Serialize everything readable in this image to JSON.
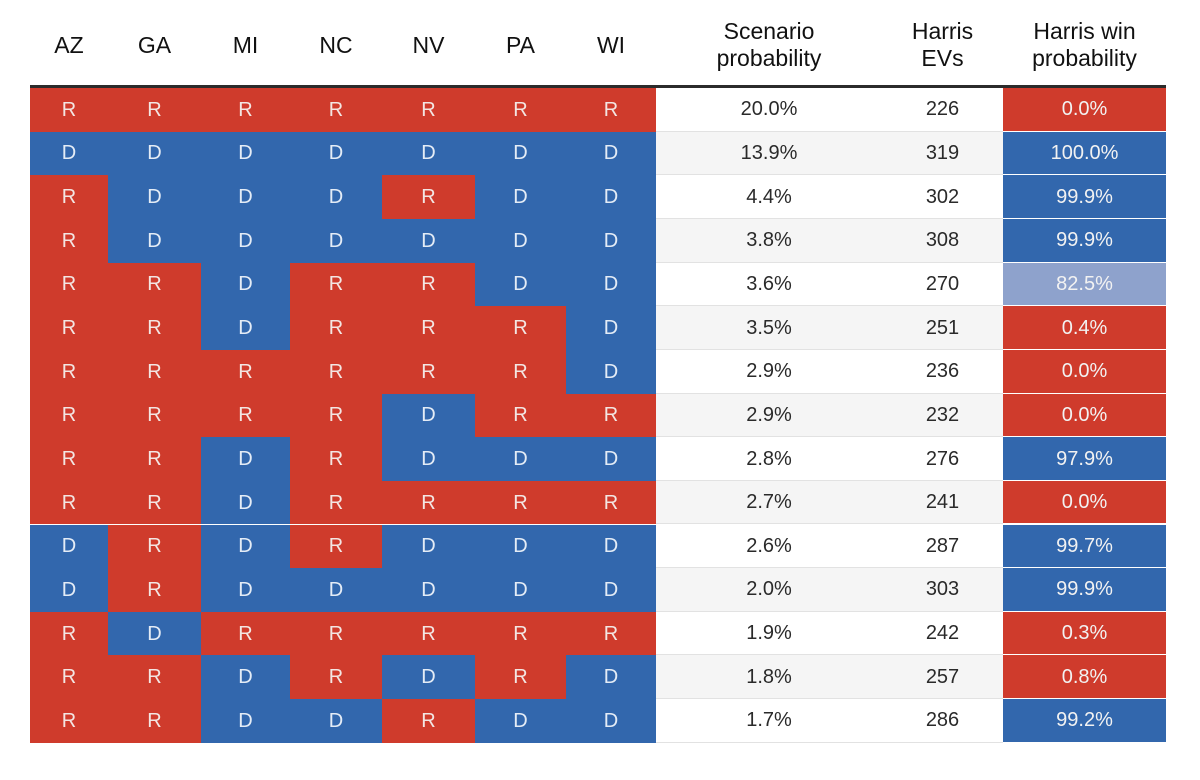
{
  "headers": {
    "states": [
      "AZ",
      "GA",
      "MI",
      "NC",
      "NV",
      "PA",
      "WI"
    ],
    "scenario_probability": "Scenario\nprobability",
    "harris_evs": "Harris\nEVs",
    "harris_win_probability": "Harris win\nprobability"
  },
  "colors": {
    "republican": "#cf3b2c",
    "democrat": "#3267ad",
    "tossup_lean_democrat": "#8ea2cc",
    "row_white": "#ffffff",
    "row_grey": "#f5f5f5",
    "header_rule": "#2b2b2b"
  },
  "chart_data": {
    "type": "table",
    "columns": [
      "AZ",
      "GA",
      "MI",
      "NC",
      "NV",
      "PA",
      "WI",
      "Scenario probability",
      "Harris EVs",
      "Harris win probability"
    ],
    "rows": [
      {
        "states": [
          "R",
          "R",
          "R",
          "R",
          "R",
          "R",
          "R"
        ],
        "scenario_probability": "20.0%",
        "harris_evs": "226",
        "harris_win_probability": "0.0%"
      },
      {
        "states": [
          "D",
          "D",
          "D",
          "D",
          "D",
          "D",
          "D"
        ],
        "scenario_probability": "13.9%",
        "harris_evs": "319",
        "harris_win_probability": "100.0%"
      },
      {
        "states": [
          "R",
          "D",
          "D",
          "D",
          "R",
          "D",
          "D"
        ],
        "scenario_probability": "4.4%",
        "harris_evs": "302",
        "harris_win_probability": "99.9%"
      },
      {
        "states": [
          "R",
          "D",
          "D",
          "D",
          "D",
          "D",
          "D"
        ],
        "scenario_probability": "3.8%",
        "harris_evs": "308",
        "harris_win_probability": "99.9%"
      },
      {
        "states": [
          "R",
          "R",
          "D",
          "R",
          "R",
          "D",
          "D"
        ],
        "scenario_probability": "3.6%",
        "harris_evs": "270",
        "harris_win_probability": "82.5%"
      },
      {
        "states": [
          "R",
          "R",
          "D",
          "R",
          "R",
          "R",
          "D"
        ],
        "scenario_probability": "3.5%",
        "harris_evs": "251",
        "harris_win_probability": "0.4%"
      },
      {
        "states": [
          "R",
          "R",
          "R",
          "R",
          "R",
          "R",
          "D"
        ],
        "scenario_probability": "2.9%",
        "harris_evs": "236",
        "harris_win_probability": "0.0%"
      },
      {
        "states": [
          "R",
          "R",
          "R",
          "R",
          "D",
          "R",
          "R"
        ],
        "scenario_probability": "2.9%",
        "harris_evs": "232",
        "harris_win_probability": "0.0%"
      },
      {
        "states": [
          "R",
          "R",
          "D",
          "R",
          "D",
          "D",
          "D"
        ],
        "scenario_probability": "2.8%",
        "harris_evs": "276",
        "harris_win_probability": "97.9%"
      },
      {
        "states": [
          "R",
          "R",
          "D",
          "R",
          "R",
          "R",
          "R"
        ],
        "scenario_probability": "2.7%",
        "harris_evs": "241",
        "harris_win_probability": "0.0%"
      },
      {
        "states": [
          "D",
          "R",
          "D",
          "R",
          "D",
          "D",
          "D"
        ],
        "scenario_probability": "2.6%",
        "harris_evs": "287",
        "harris_win_probability": "99.7%"
      },
      {
        "states": [
          "D",
          "R",
          "D",
          "D",
          "D",
          "D",
          "D"
        ],
        "scenario_probability": "2.0%",
        "harris_evs": "303",
        "harris_win_probability": "99.9%"
      },
      {
        "states": [
          "R",
          "D",
          "R",
          "R",
          "R",
          "R",
          "R"
        ],
        "scenario_probability": "1.9%",
        "harris_evs": "242",
        "harris_win_probability": "0.3%"
      },
      {
        "states": [
          "R",
          "R",
          "D",
          "R",
          "D",
          "R",
          "D"
        ],
        "scenario_probability": "1.8%",
        "harris_evs": "257",
        "harris_win_probability": "0.8%"
      },
      {
        "states": [
          "R",
          "R",
          "D",
          "D",
          "R",
          "D",
          "D"
        ],
        "scenario_probability": "1.7%",
        "harris_evs": "286",
        "harris_win_probability": "99.2%"
      }
    ]
  }
}
